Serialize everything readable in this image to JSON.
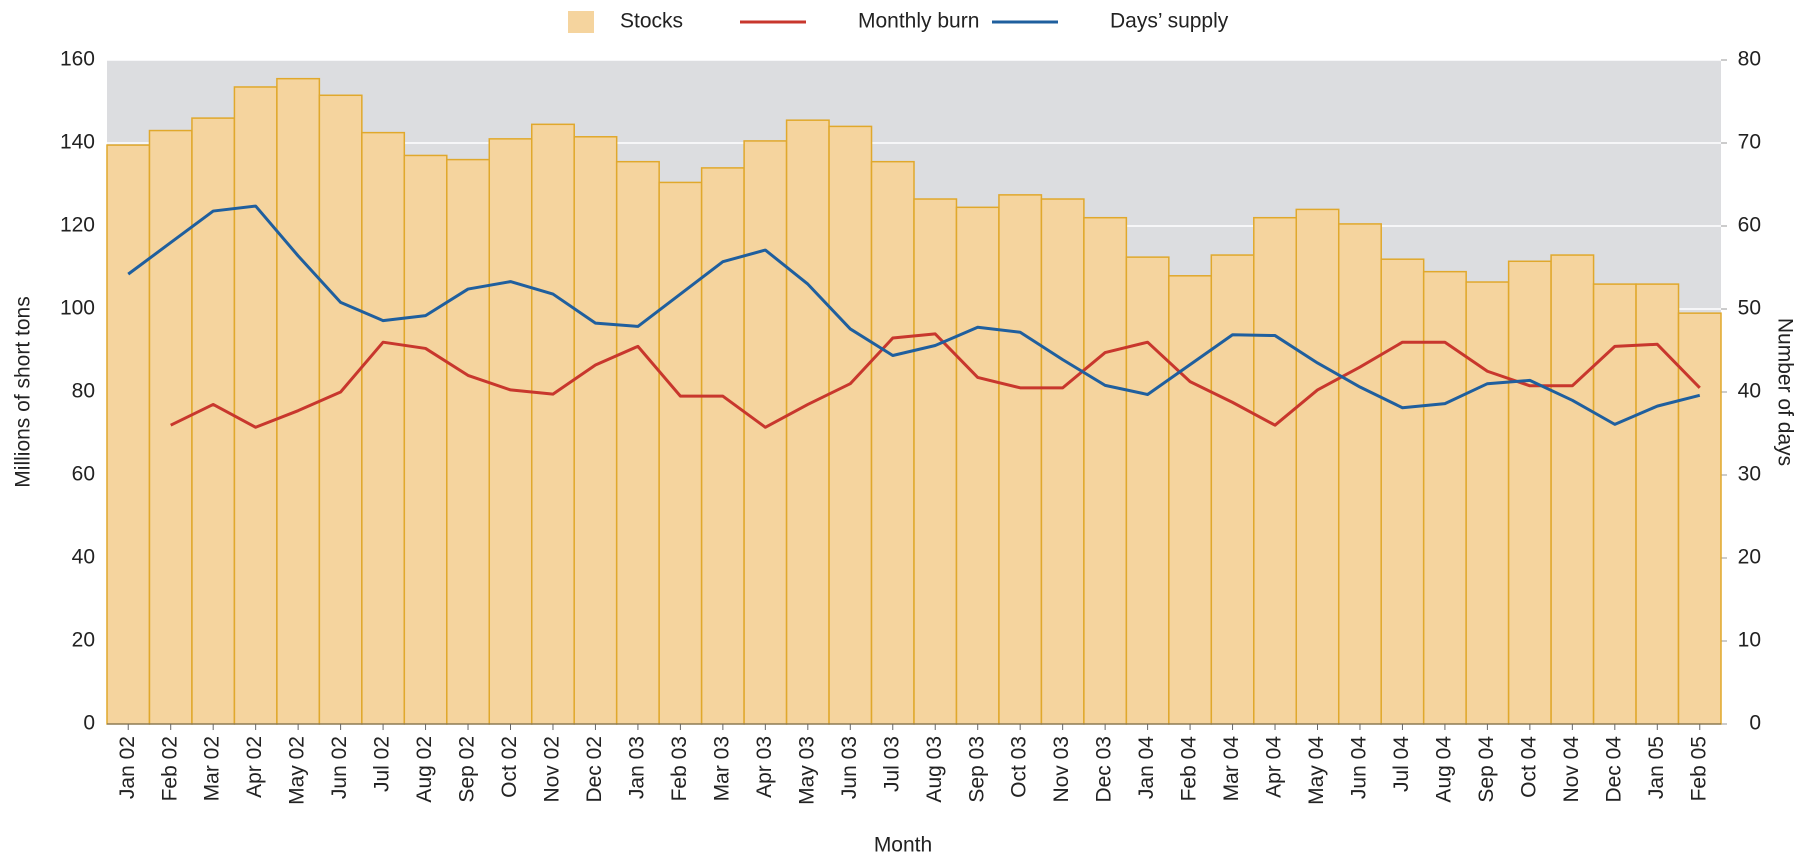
{
  "chart_data": {
    "type": "bar",
    "x_label": "Month",
    "y_label": "Millions of short tons",
    "y2_label": "Number of days",
    "categories": [
      "Jan 02",
      "Feb 02",
      "Mar 02",
      "Apr 02",
      "May 02",
      "Jun 02",
      "Jul 02",
      "Aug 02",
      "Sep 02",
      "Oct 02",
      "Nov 02",
      "Dec 02",
      "Jan 03",
      "Feb 03",
      "Mar 03",
      "Apr 03",
      "May 03",
      "Jun 03",
      "Jul 03",
      "Aug 03",
      "Sep 03",
      "Oct 03",
      "Nov 03",
      "Dec 03",
      "Jan 04",
      "Feb 04",
      "Mar 04",
      "Apr 04",
      "May 04",
      "Jun 04",
      "Jul 04",
      "Aug 04",
      "Sep 04",
      "Oct 04",
      "Nov 04",
      "Dec 04",
      "Jan 05",
      "Feb 05"
    ],
    "series": [
      {
        "name": "Stocks",
        "type": "bar",
        "color": "#f5d49e",
        "edge": "#e0a82c",
        "values": [
          139.5,
          143,
          146,
          153.5,
          155.5,
          151.5,
          142.5,
          137,
          136,
          141,
          144.5,
          141.5,
          135.5,
          130.5,
          134,
          140.5,
          145.5,
          144,
          135.5,
          126.5,
          124.5,
          127.5,
          126.5,
          122,
          112.5,
          108,
          113,
          122,
          124,
          120.5,
          112,
          109,
          106.5,
          111.5,
          113,
          106,
          106,
          99
        ]
      },
      {
        "name": "Monthly burn",
        "type": "line",
        "color": "#c8372d",
        "values": [
          null,
          72,
          77,
          71.5,
          75.5,
          80,
          92,
          90.5,
          84,
          80.5,
          79.5,
          86.5,
          91,
          79,
          79,
          71.5,
          77,
          82,
          93,
          94,
          83.5,
          81,
          81,
          89.5,
          92,
          82.5,
          77.5,
          72,
          80.5,
          86,
          92,
          92,
          85,
          81.5,
          81.5,
          91,
          91.5,
          81
        ]
      },
      {
        "name": "Days’ supply",
        "type": "line",
        "axis": "y2",
        "color": "#1f5f9e",
        "values": [
          54.2,
          58,
          61.8,
          62.4,
          56.4,
          50.8,
          48.6,
          49.2,
          52.4,
          53.3,
          51.8,
          48.3,
          47.9,
          51.8,
          55.7,
          57.1,
          53,
          47.6,
          44.4,
          45.6,
          47.8,
          47.2,
          43.9,
          40.8,
          39.7,
          43.3,
          46.9,
          46.8,
          43.5,
          40.6,
          38.1,
          38.6,
          41,
          41.4,
          39,
          36.1,
          38.3,
          39.6
        ]
      }
    ],
    "ylim": [
      0,
      160
    ],
    "yticks": [
      0,
      20,
      40,
      60,
      80,
      100,
      120,
      140,
      160
    ],
    "y2lim": [
      0,
      80
    ],
    "y2ticks": [
      0,
      10,
      20,
      30,
      40,
      50,
      60,
      70,
      80
    ],
    "grid": true,
    "legend": "top",
    "plot_background": "#dcdde0"
  }
}
